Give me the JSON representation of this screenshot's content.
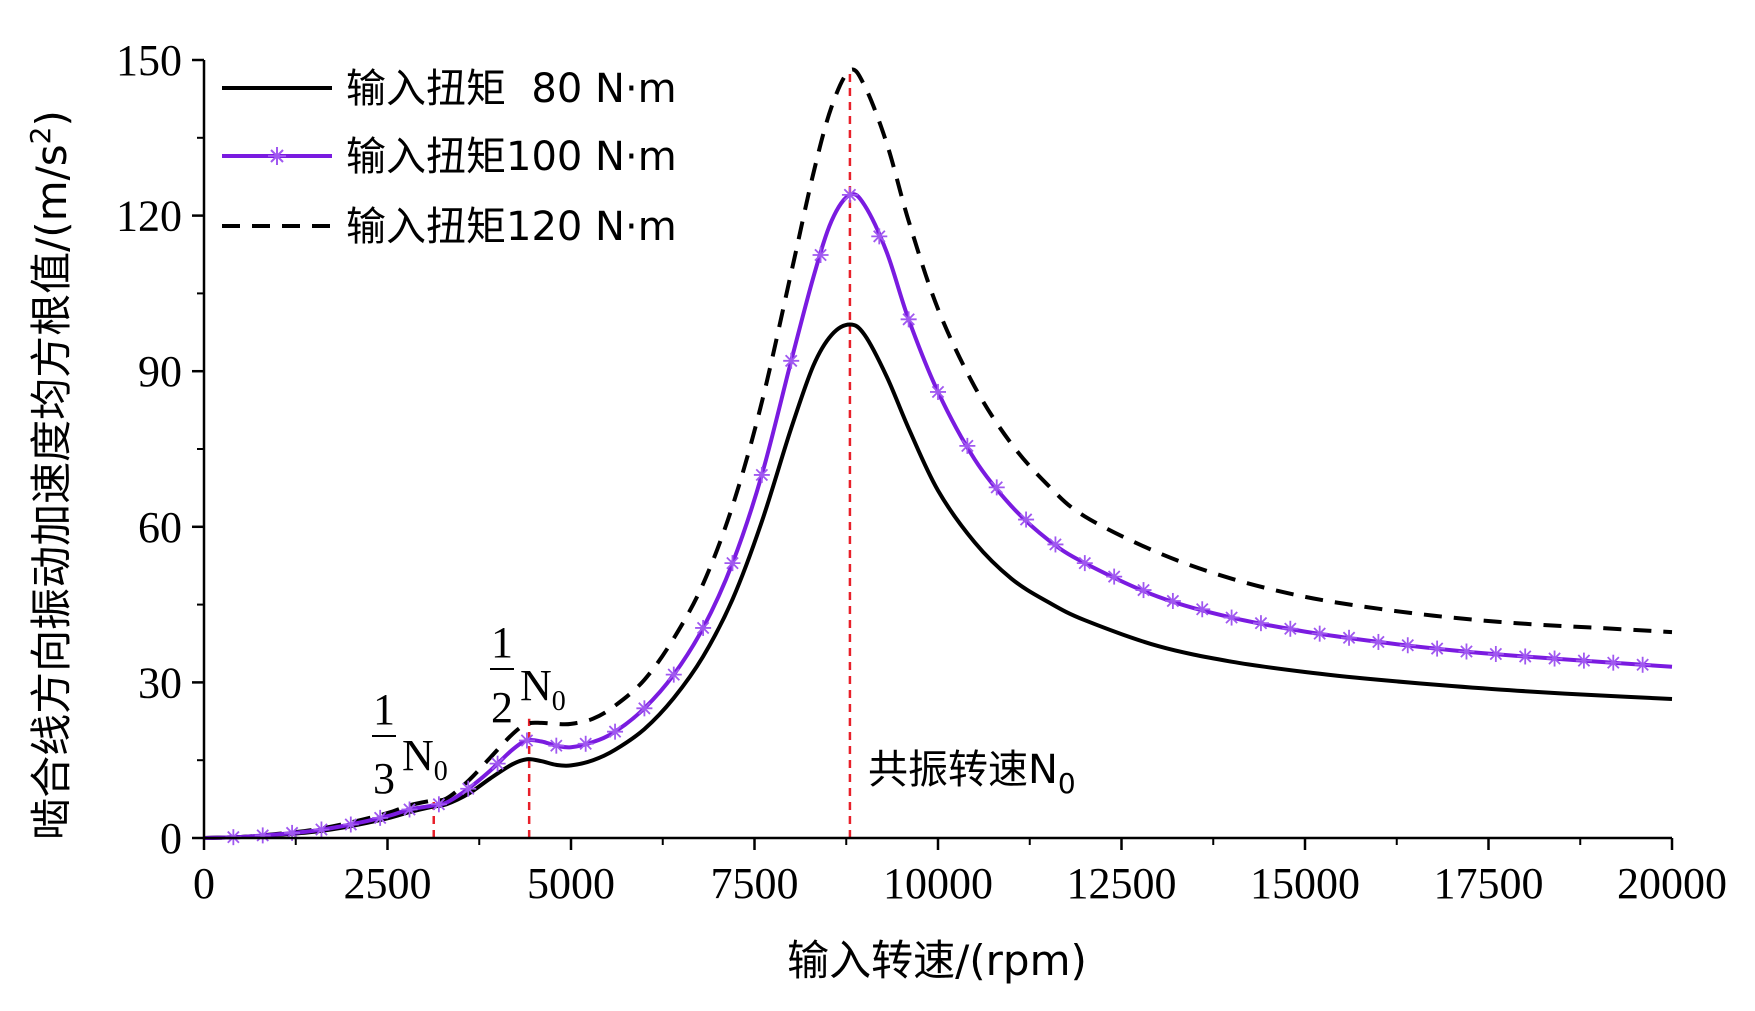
{
  "chart_data": {
    "type": "line",
    "xlabel": "输入转速/(rpm)",
    "ylabel_main": "啮合线方向振动加速度均方根值/(m/s",
    "ylabel_sup": "2",
    "ylabel_end": ")",
    "xlim": [
      0,
      20000
    ],
    "ylim": [
      0,
      150
    ],
    "x_ticks": [
      0,
      2500,
      5000,
      7500,
      10000,
      12500,
      15000,
      17500,
      20000
    ],
    "y_ticks": [
      0,
      30,
      60,
      90,
      120,
      150
    ],
    "x_tick_labels": [
      "0",
      "2500",
      "5000",
      "7500",
      "10000",
      "12500",
      "15000",
      "17500",
      "20000"
    ],
    "y_tick_labels": [
      "0",
      "30",
      "60",
      "90",
      "120",
      "150"
    ],
    "grid": false,
    "legend_position": "top-left",
    "series": [
      {
        "name": "输入扭矩  80 N·m",
        "color": "#000000",
        "style": "solid",
        "marker": "none",
        "x": [
          0,
          500,
          1000,
          1500,
          2000,
          2500,
          2800,
          3100,
          3300,
          3600,
          3900,
          4200,
          4400,
          4600,
          4800,
          5000,
          5300,
          5600,
          6000,
          6400,
          6800,
          7200,
          7600,
          8000,
          8300,
          8550,
          8800,
          9000,
          9300,
          9600,
          10000,
          10500,
          11000,
          11500,
          12000,
          13000,
          14000,
          15000,
          16000,
          17000,
          18000,
          19000,
          20000
        ],
        "y": [
          0,
          0.2,
          0.6,
          1.2,
          2.3,
          3.8,
          5.0,
          6.0,
          6.5,
          8.5,
          11.5,
          14.2,
          15.2,
          14.8,
          14.1,
          14.0,
          15.0,
          17.0,
          21.0,
          27.0,
          35.0,
          46.0,
          61.0,
          79.0,
          91.0,
          97.0,
          99.0,
          97.0,
          89.0,
          79.0,
          67.0,
          57.0,
          50.0,
          45.5,
          42.0,
          37.0,
          34.0,
          32.0,
          30.5,
          29.3,
          28.3,
          27.5,
          26.8
        ]
      },
      {
        "name": "输入扭矩100 N·m",
        "color": "#7a1be0",
        "style": "solid",
        "marker": "asterisk",
        "x": [
          0,
          500,
          1000,
          1500,
          2000,
          2500,
          2800,
          3100,
          3300,
          3600,
          3900,
          4200,
          4400,
          4600,
          4800,
          5000,
          5300,
          5600,
          6000,
          6400,
          6800,
          7200,
          7600,
          8000,
          8300,
          8550,
          8800,
          9000,
          9300,
          9600,
          10000,
          10500,
          11000,
          11500,
          12000,
          13000,
          14000,
          15000,
          16000,
          17000,
          18000,
          19000,
          20000
        ],
        "y": [
          0,
          0.2,
          0.7,
          1.4,
          2.6,
          4.2,
          5.5,
          6.2,
          6.8,
          9.5,
          13.0,
          17.0,
          18.8,
          18.6,
          17.8,
          17.5,
          18.5,
          20.5,
          25.0,
          31.5,
          40.5,
          53.0,
          70.0,
          92.0,
          108.0,
          119.0,
          124.0,
          122.0,
          113.0,
          100.0,
          86.0,
          73.0,
          64.0,
          57.5,
          53.0,
          46.5,
          42.5,
          39.8,
          37.8,
          36.2,
          35.0,
          34.0,
          33.0
        ]
      },
      {
        "name": "输入扭矩120 N·m",
        "color": "#000000",
        "style": "dashed",
        "marker": "none",
        "x": [
          0,
          500,
          1000,
          1500,
          2000,
          2500,
          2800,
          3100,
          3300,
          3600,
          3900,
          4200,
          4400,
          4600,
          4800,
          5000,
          5300,
          5600,
          6000,
          6400,
          6800,
          7200,
          7600,
          8000,
          8300,
          8550,
          8800,
          9000,
          9300,
          9600,
          10000,
          10500,
          11000,
          11500,
          12000,
          13000,
          14000,
          15000,
          16000,
          17000,
          18000,
          19000,
          20000
        ],
        "y": [
          0,
          0.2,
          0.8,
          1.6,
          3.0,
          4.8,
          6.3,
          7.2,
          7.6,
          11.0,
          15.5,
          20.0,
          22.0,
          22.2,
          22.0,
          22.0,
          23.0,
          25.5,
          30.5,
          38.5,
          49.0,
          64.0,
          84.0,
          109.0,
          128.0,
          141.0,
          148.0,
          145.0,
          134.0,
          119.0,
          102.0,
          87.0,
          76.0,
          68.0,
          62.0,
          55.0,
          50.0,
          46.5,
          44.2,
          42.5,
          41.3,
          40.5,
          39.7
        ]
      }
    ],
    "reference_lines": [
      {
        "x": 3130,
        "y_top": 7.5,
        "label_frac": "1/3",
        "label_main": "N",
        "label_sub": "0",
        "label_num": "1",
        "label_den": "3"
      },
      {
        "x": 4430,
        "y_top": 23,
        "label_frac": "1/2",
        "label_main": "N",
        "label_sub": "0",
        "label_num": "1",
        "label_den": "2"
      },
      {
        "x": 8800,
        "y_top": 148,
        "label_text": "共振转速N",
        "label_sub": "0"
      }
    ],
    "reference_line_color": "#e8202a"
  }
}
